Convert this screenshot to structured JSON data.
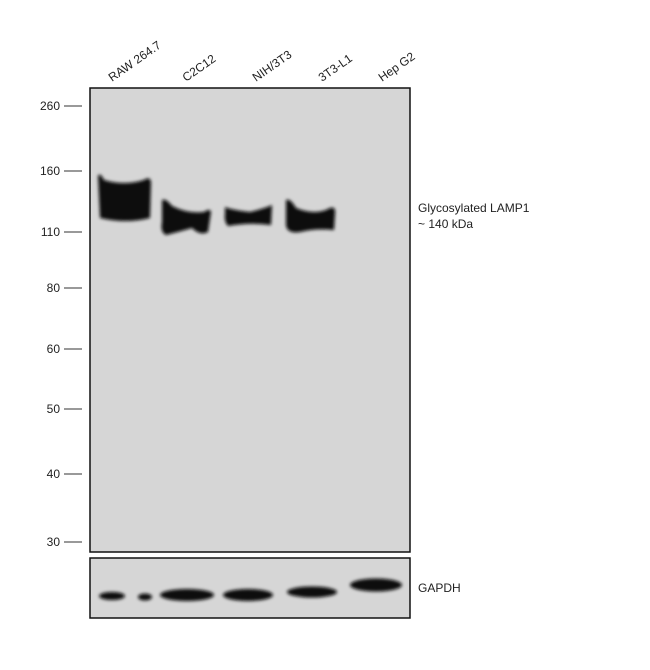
{
  "lanes": [
    "RAW 264.7",
    "C2C12",
    "NIH/3T3",
    "3T3-L1",
    "Hep G2"
  ],
  "markers": [
    "260",
    "160",
    "110",
    "80",
    "60",
    "50",
    "40",
    "30"
  ],
  "band_label": {
    "name": "Glycosylated LAMP1",
    "size": "~ 140 kDa"
  },
  "loading_control": "GAPDH"
}
